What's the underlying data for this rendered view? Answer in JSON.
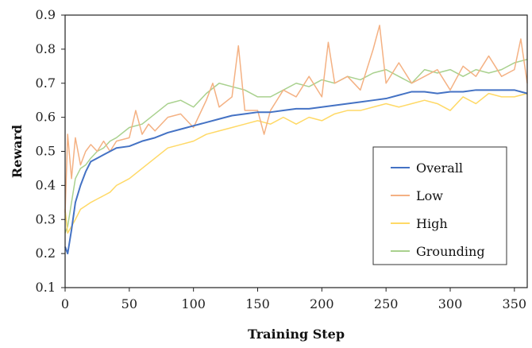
{
  "chart_data": {
    "type": "line",
    "title": "",
    "xlabel": "Training Step",
    "ylabel": "Reward",
    "xlim": [
      0,
      360
    ],
    "ylim": [
      0.1,
      0.9
    ],
    "xticks": [
      0,
      50,
      100,
      150,
      200,
      250,
      300,
      350
    ],
    "yticks": [
      0.1,
      0.2,
      0.3,
      0.4,
      0.5,
      0.6,
      0.7,
      0.8,
      0.9
    ],
    "xtick_labels": [
      "0",
      "50",
      "100",
      "150",
      "200",
      "250",
      "300",
      "350"
    ],
    "ytick_labels": [
      "0.1",
      "0.2",
      "0.3",
      "0.4",
      "0.5",
      "0.6",
      "0.7",
      "0.8",
      "0.9"
    ],
    "grid": false,
    "legend_position": "bottom-right",
    "series": [
      {
        "name": "Overall",
        "color": "#4472C4",
        "x": [
          0,
          2,
          5,
          8,
          12,
          16,
          20,
          25,
          30,
          35,
          40,
          50,
          60,
          70,
          80,
          90,
          100,
          110,
          120,
          130,
          140,
          150,
          160,
          170,
          180,
          190,
          200,
          210,
          220,
          230,
          240,
          250,
          260,
          270,
          280,
          290,
          300,
          310,
          320,
          330,
          340,
          350,
          360
        ],
        "y": [
          0.22,
          0.2,
          0.27,
          0.35,
          0.4,
          0.44,
          0.47,
          0.48,
          0.49,
          0.5,
          0.51,
          0.515,
          0.53,
          0.54,
          0.555,
          0.565,
          0.575,
          0.585,
          0.595,
          0.605,
          0.61,
          0.615,
          0.615,
          0.62,
          0.625,
          0.625,
          0.63,
          0.635,
          0.64,
          0.645,
          0.65,
          0.655,
          0.665,
          0.675,
          0.675,
          0.67,
          0.675,
          0.675,
          0.68,
          0.68,
          0.68,
          0.68,
          0.67
        ]
      },
      {
        "name": "Low",
        "color": "#F4B183",
        "x": [
          0,
          2,
          5,
          8,
          12,
          16,
          20,
          25,
          30,
          35,
          40,
          50,
          55,
          60,
          65,
          70,
          80,
          90,
          100,
          110,
          115,
          120,
          130,
          135,
          140,
          150,
          155,
          160,
          170,
          180,
          190,
          200,
          205,
          210,
          220,
          230,
          240,
          245,
          250,
          260,
          270,
          280,
          290,
          300,
          310,
          320,
          330,
          340,
          350,
          355,
          360
        ],
        "y": [
          0.32,
          0.55,
          0.42,
          0.54,
          0.46,
          0.5,
          0.52,
          0.5,
          0.53,
          0.5,
          0.53,
          0.54,
          0.62,
          0.55,
          0.58,
          0.56,
          0.6,
          0.61,
          0.57,
          0.65,
          0.7,
          0.63,
          0.66,
          0.81,
          0.62,
          0.62,
          0.55,
          0.62,
          0.68,
          0.66,
          0.72,
          0.66,
          0.82,
          0.7,
          0.72,
          0.68,
          0.8,
          0.87,
          0.7,
          0.76,
          0.7,
          0.72,
          0.74,
          0.68,
          0.75,
          0.72,
          0.78,
          0.72,
          0.74,
          0.83,
          0.7
        ]
      },
      {
        "name": "High",
        "color": "#FFD966",
        "x": [
          0,
          2,
          5,
          8,
          12,
          16,
          20,
          25,
          30,
          35,
          40,
          50,
          60,
          70,
          80,
          90,
          100,
          110,
          120,
          130,
          140,
          150,
          160,
          170,
          180,
          190,
          200,
          210,
          220,
          230,
          240,
          250,
          260,
          270,
          280,
          290,
          300,
          310,
          320,
          330,
          340,
          350,
          360
        ],
        "y": [
          0.33,
          0.26,
          0.28,
          0.3,
          0.33,
          0.34,
          0.35,
          0.36,
          0.37,
          0.38,
          0.4,
          0.42,
          0.45,
          0.48,
          0.51,
          0.52,
          0.53,
          0.55,
          0.56,
          0.57,
          0.58,
          0.59,
          0.58,
          0.6,
          0.58,
          0.6,
          0.59,
          0.61,
          0.62,
          0.62,
          0.63,
          0.64,
          0.63,
          0.64,
          0.65,
          0.64,
          0.62,
          0.66,
          0.64,
          0.67,
          0.66,
          0.66,
          0.67
        ]
      },
      {
        "name": "Grounding",
        "color": "#A9D18E",
        "x": [
          0,
          2,
          5,
          8,
          12,
          16,
          20,
          25,
          30,
          35,
          40,
          50,
          60,
          70,
          80,
          90,
          100,
          110,
          120,
          130,
          140,
          150,
          160,
          170,
          180,
          190,
          200,
          210,
          220,
          230,
          240,
          250,
          260,
          270,
          280,
          290,
          300,
          310,
          320,
          330,
          340,
          350,
          360
        ],
        "y": [
          0.26,
          0.28,
          0.35,
          0.42,
          0.45,
          0.46,
          0.48,
          0.5,
          0.51,
          0.53,
          0.54,
          0.57,
          0.58,
          0.61,
          0.64,
          0.65,
          0.63,
          0.67,
          0.7,
          0.69,
          0.68,
          0.66,
          0.66,
          0.68,
          0.7,
          0.69,
          0.71,
          0.7,
          0.72,
          0.71,
          0.73,
          0.74,
          0.72,
          0.7,
          0.74,
          0.73,
          0.74,
          0.72,
          0.74,
          0.73,
          0.74,
          0.76,
          0.77
        ]
      }
    ]
  }
}
